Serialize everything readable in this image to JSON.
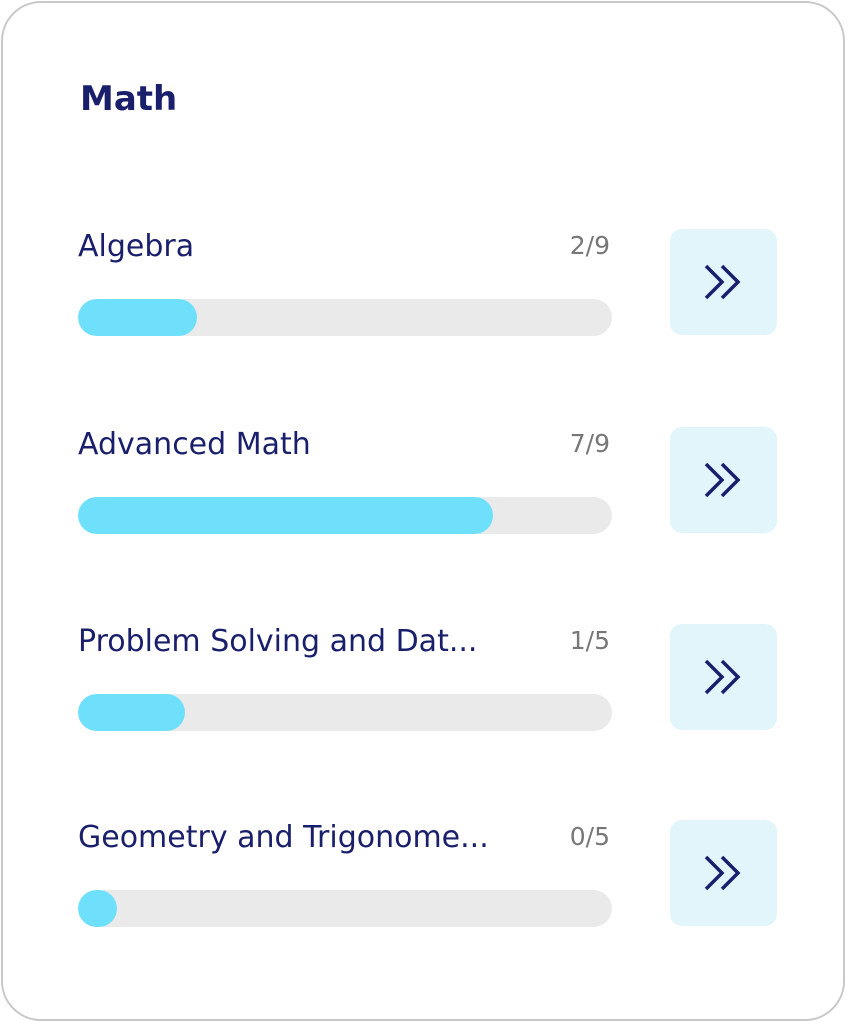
{
  "title": "Math",
  "colors": {
    "fill": "#6fe0fb",
    "track": "#eaeaea",
    "text": "#1a1f6b",
    "button_bg": "#e2f5fb"
  },
  "topics": [
    {
      "label": "Algebra",
      "count": "2/9",
      "progress": 0.222,
      "icon": "double-chevron-right-icon"
    },
    {
      "label": "Advanced Math",
      "count": "7/9",
      "progress": 0.778,
      "icon": "double-chevron-right-icon"
    },
    {
      "label": "Problem Solving and Dat...",
      "count": "1/5",
      "progress": 0.2,
      "icon": "double-chevron-right-icon"
    },
    {
      "label": "Geometry and Trigonome...",
      "count": "0/5",
      "progress": 0.0,
      "icon": "double-chevron-right-icon"
    }
  ]
}
